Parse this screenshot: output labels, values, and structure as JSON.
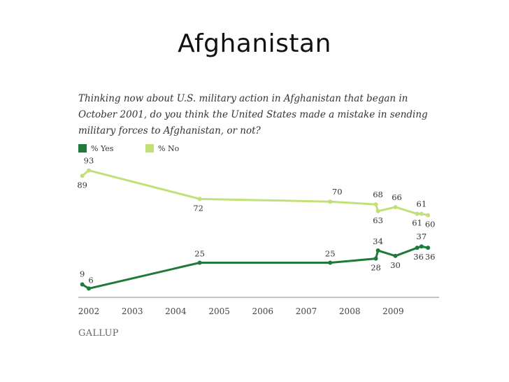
{
  "slide": {
    "title": "Afghanistan"
  },
  "chart_data": {
    "type": "line",
    "title": "",
    "question": "Thinking now about U.S. military action in Afghanistan that began in October 2001, do you think the United States made a mistake in sending military forces to Afghanistan, or not?",
    "xlabel": "",
    "ylabel": "",
    "xlim": [
      2002,
      2010
    ],
    "ylim": [
      0,
      100
    ],
    "x_ticks": [
      "2002",
      "2003",
      "2004",
      "2005",
      "2006",
      "2007",
      "2008",
      "2009"
    ],
    "legend": {
      "placement": "top-left"
    },
    "grid": false,
    "source": "GALLUP",
    "series": [
      {
        "name": "% Yes",
        "color": "#1e7a3a",
        "points": [
          {
            "x": 2001.85,
            "y": 9,
            "label": "9"
          },
          {
            "x": 2002.0,
            "y": 6,
            "label": "6"
          },
          {
            "x": 2004.55,
            "y": 25,
            "label": "25"
          },
          {
            "x": 2007.55,
            "y": 25,
            "label": "25"
          },
          {
            "x": 2008.6,
            "y": 28,
            "label": "28"
          },
          {
            "x": 2008.65,
            "y": 34,
            "label": "34"
          },
          {
            "x": 2009.05,
            "y": 30,
            "label": "30"
          },
          {
            "x": 2009.55,
            "y": 36,
            "label": "36"
          },
          {
            "x": 2009.65,
            "y": 37,
            "label": "37"
          },
          {
            "x": 2009.8,
            "y": 36,
            "label": "36"
          }
        ]
      },
      {
        "name": "% No",
        "color": "#c2e07a",
        "points": [
          {
            "x": 2001.85,
            "y": 89,
            "label": "89"
          },
          {
            "x": 2002.0,
            "y": 93,
            "label": "93"
          },
          {
            "x": 2004.55,
            "y": 72,
            "label": "72"
          },
          {
            "x": 2007.55,
            "y": 70,
            "label": "70"
          },
          {
            "x": 2008.6,
            "y": 68,
            "label": "68"
          },
          {
            "x": 2008.65,
            "y": 63,
            "label": "63"
          },
          {
            "x": 2009.05,
            "y": 66,
            "label": "66"
          },
          {
            "x": 2009.55,
            "y": 61,
            "label": "61"
          },
          {
            "x": 2009.65,
            "y": 61,
            "label": "61"
          },
          {
            "x": 2009.8,
            "y": 60,
            "label": "60"
          }
        ]
      }
    ]
  }
}
